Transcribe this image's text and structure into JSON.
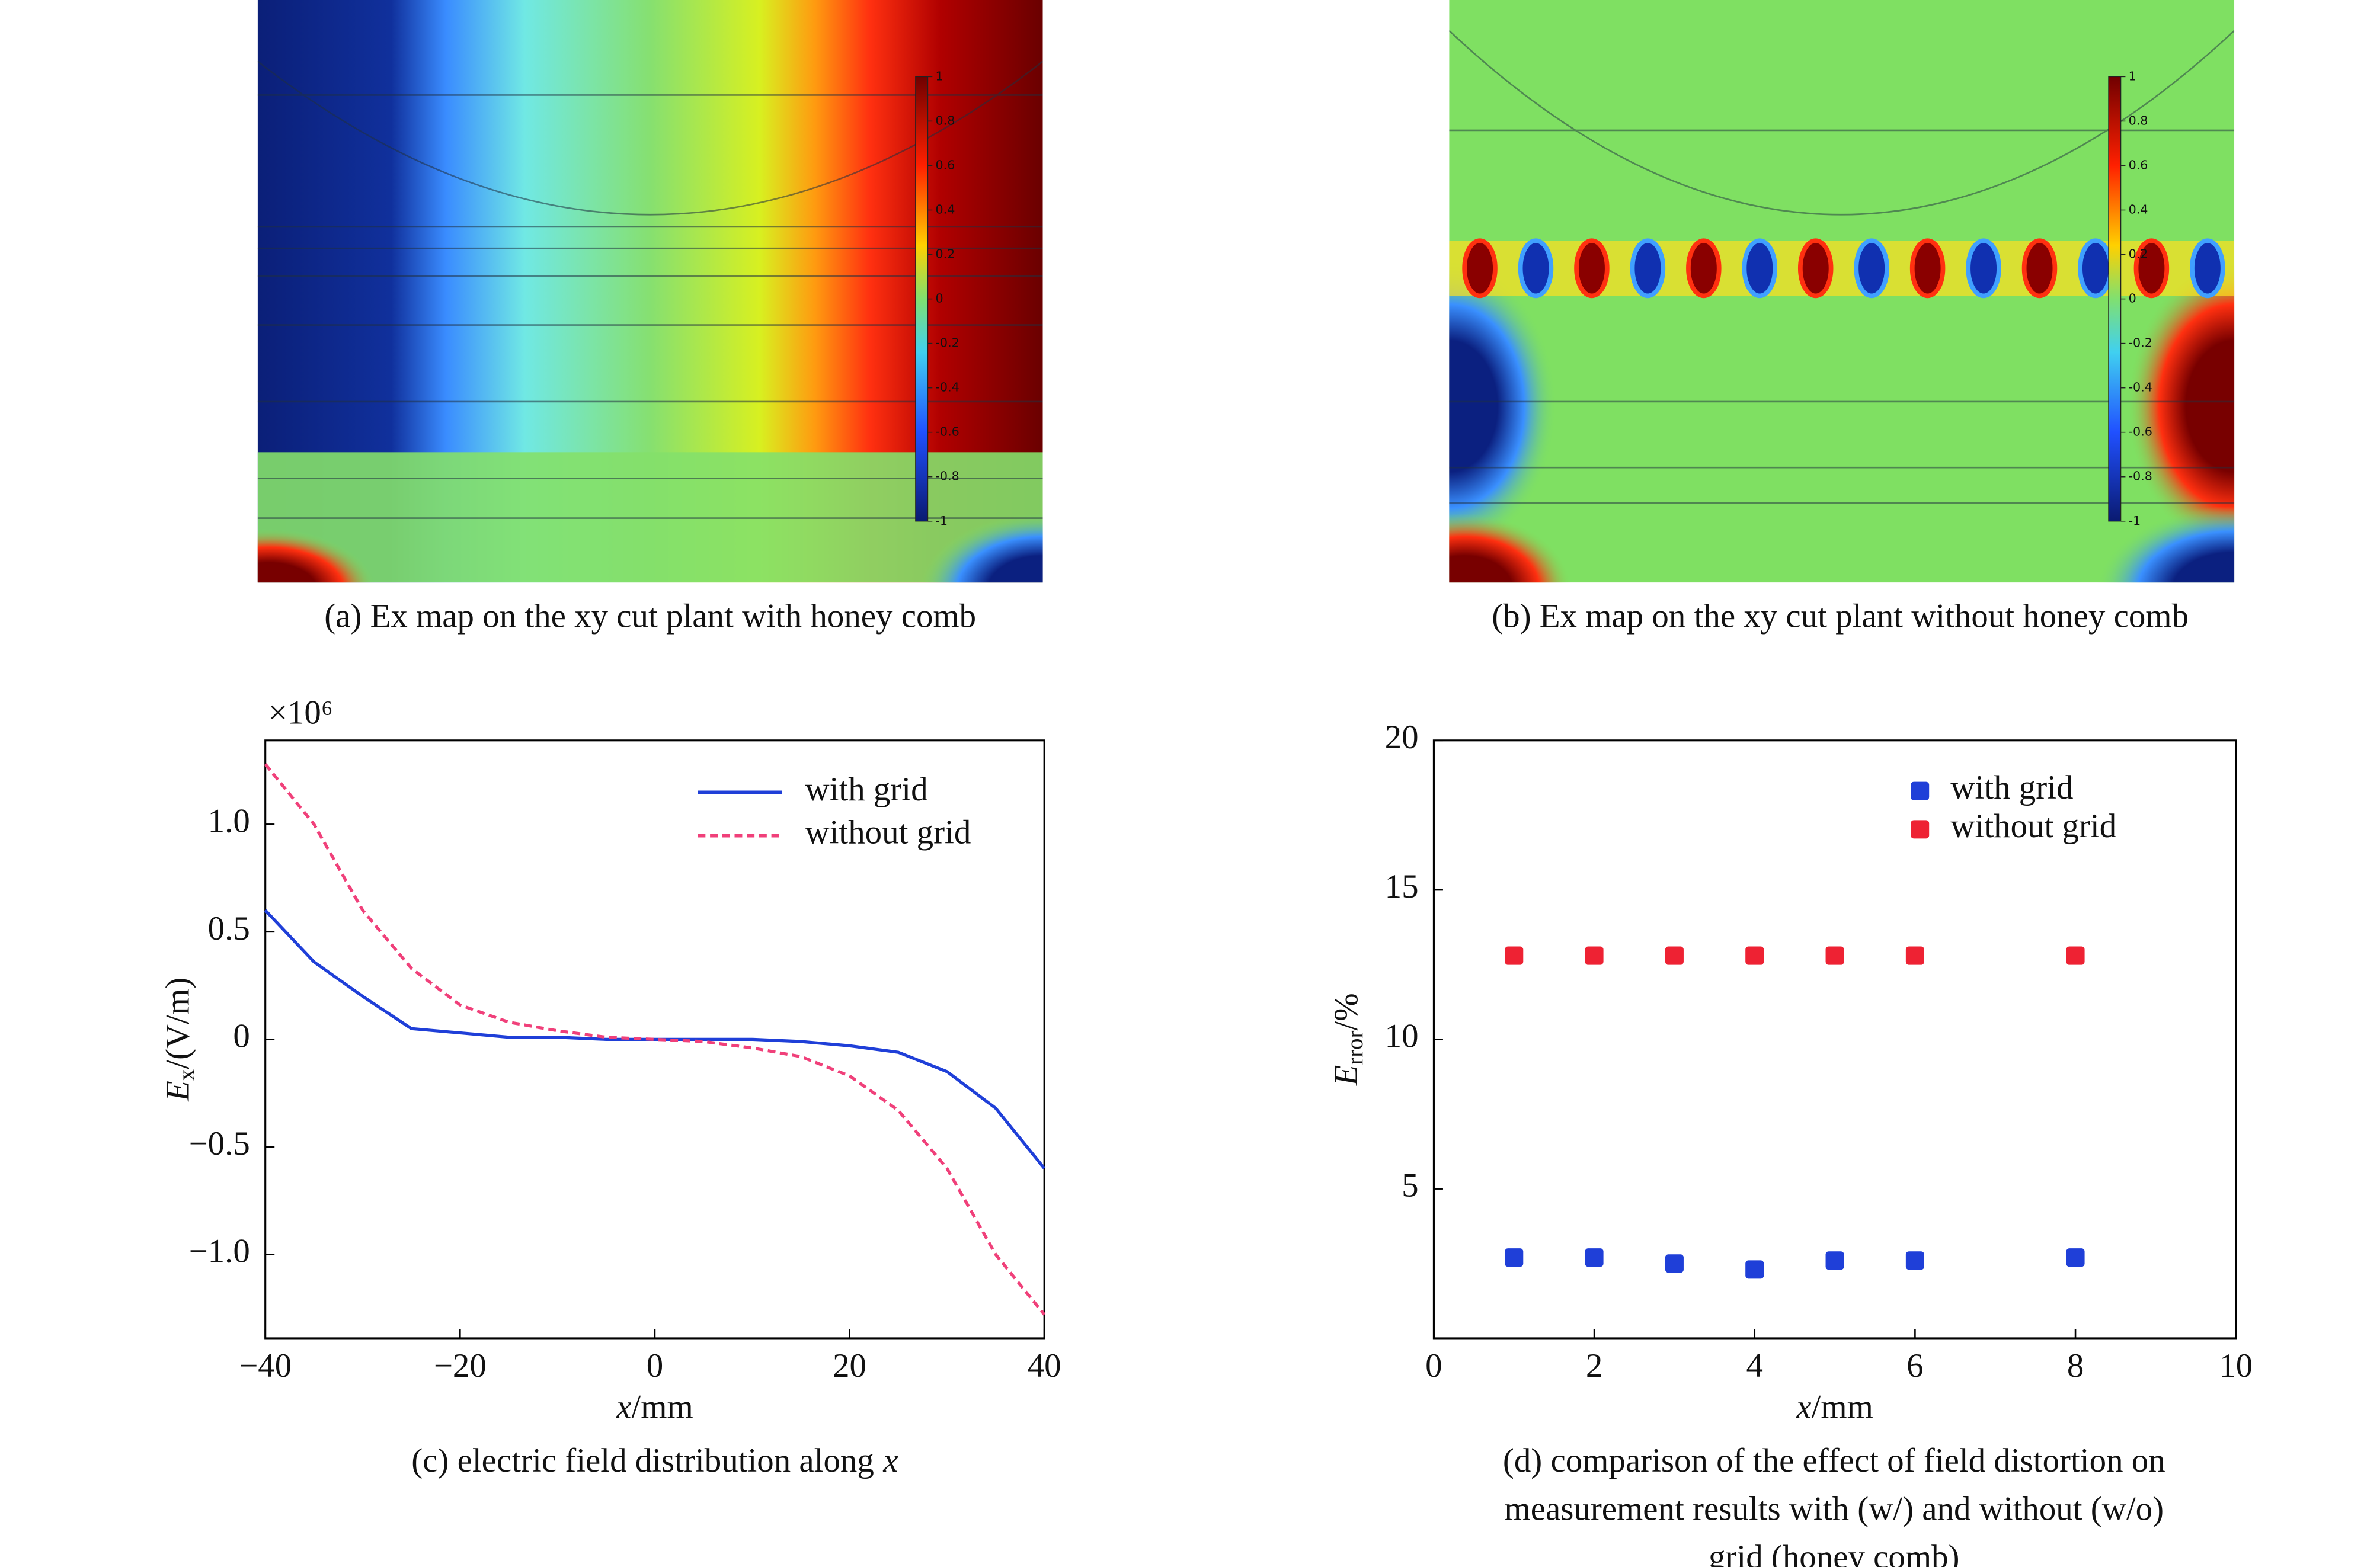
{
  "chart_data": [
    {
      "type": "heatmap",
      "caption": "(a) Ex map on the xy cut plant with honey comb",
      "clim": [
        -1,
        1
      ],
      "cticks": [
        -1,
        -0.8,
        -0.6,
        -0.4,
        -0.2,
        0,
        0.2,
        0.4,
        0.6,
        0.8,
        1
      ]
    },
    {
      "type": "heatmap",
      "caption": "(b) Ex map on the xy cut plant without honey comb",
      "clim": [
        -1,
        1
      ],
      "cticks": [
        -1,
        -0.8,
        -0.6,
        -0.4,
        -0.2,
        0,
        0.2,
        0.4,
        0.6,
        0.8,
        1
      ]
    },
    {
      "type": "line",
      "caption": "(c) electric field distribution along",
      "caption_var": "x",
      "multiplier": "×10⁶",
      "x_label": {
        "symbol": "x",
        "unit": "/mm"
      },
      "y_label": {
        "symbol": "E",
        "subscript": "x",
        "unit": "/(V/m)"
      },
      "x": [
        -40,
        -35,
        -30,
        -25,
        -20,
        -15,
        -10,
        -5,
        0,
        5,
        10,
        15,
        20,
        25,
        30,
        35,
        40
      ],
      "series": [
        {
          "name": "with grid",
          "color": "#1f3fd8",
          "dash": false,
          "values": [
            0.6,
            0.36,
            0.2,
            0.05,
            0.03,
            0.01,
            0.01,
            0,
            0,
            0,
            0,
            -0.01,
            -0.03,
            -0.06,
            -0.15,
            -0.32,
            -0.6
          ]
        },
        {
          "name": "without grid",
          "color": "#f0407a",
          "dash": true,
          "values": [
            1.28,
            1,
            0.6,
            0.33,
            0.16,
            0.08,
            0.04,
            0.01,
            0,
            -0.01,
            -0.04,
            -0.08,
            -0.17,
            -0.33,
            -0.6,
            -1,
            -1.28
          ]
        }
      ],
      "xlim": [
        -40,
        40
      ],
      "xticks": [
        {
          "value": -40,
          "label": "−40"
        },
        {
          "value": -20,
          "label": "−20"
        },
        0,
        20,
        40
      ],
      "ylim": [
        -1.39,
        1.39
      ],
      "yticks": [
        {
          "value": -1,
          "label": "−1.0"
        },
        {
          "value": -0.5,
          "label": "−0.5"
        },
        0,
        0.5,
        {
          "value": 1,
          "label": "1.0"
        }
      ],
      "legend": "upper right"
    },
    {
      "type": "scatter",
      "caption": [
        "(d) comparison of the effect of field distortion on",
        "measurement results with (w/) and without (w/o)",
        "grid (honey comb)"
      ],
      "x_label": {
        "symbol": "x",
        "unit": "/mm"
      },
      "y_label": {
        "symbol": "E",
        "subscript": "rror",
        "unit": "/%"
      },
      "x": [
        1,
        2,
        3,
        4,
        5,
        6,
        8
      ],
      "series": [
        {
          "name": "with grid",
          "color": "#1f3fd8",
          "values": [
            2.7,
            2.7,
            2.5,
            2.3,
            2.6,
            2.6,
            2.7
          ]
        },
        {
          "name": "without grid",
          "color": "#ee2233",
          "values": [
            12.8,
            12.8,
            12.8,
            12.8,
            12.8,
            12.8,
            12.8
          ]
        }
      ],
      "xlim": [
        0,
        10
      ],
      "xticks": [
        0,
        2,
        4,
        6,
        8,
        10
      ],
      "ylim": [
        0,
        20
      ],
      "yticks": [
        5,
        10,
        15,
        20
      ],
      "legend": "upper right"
    }
  ]
}
